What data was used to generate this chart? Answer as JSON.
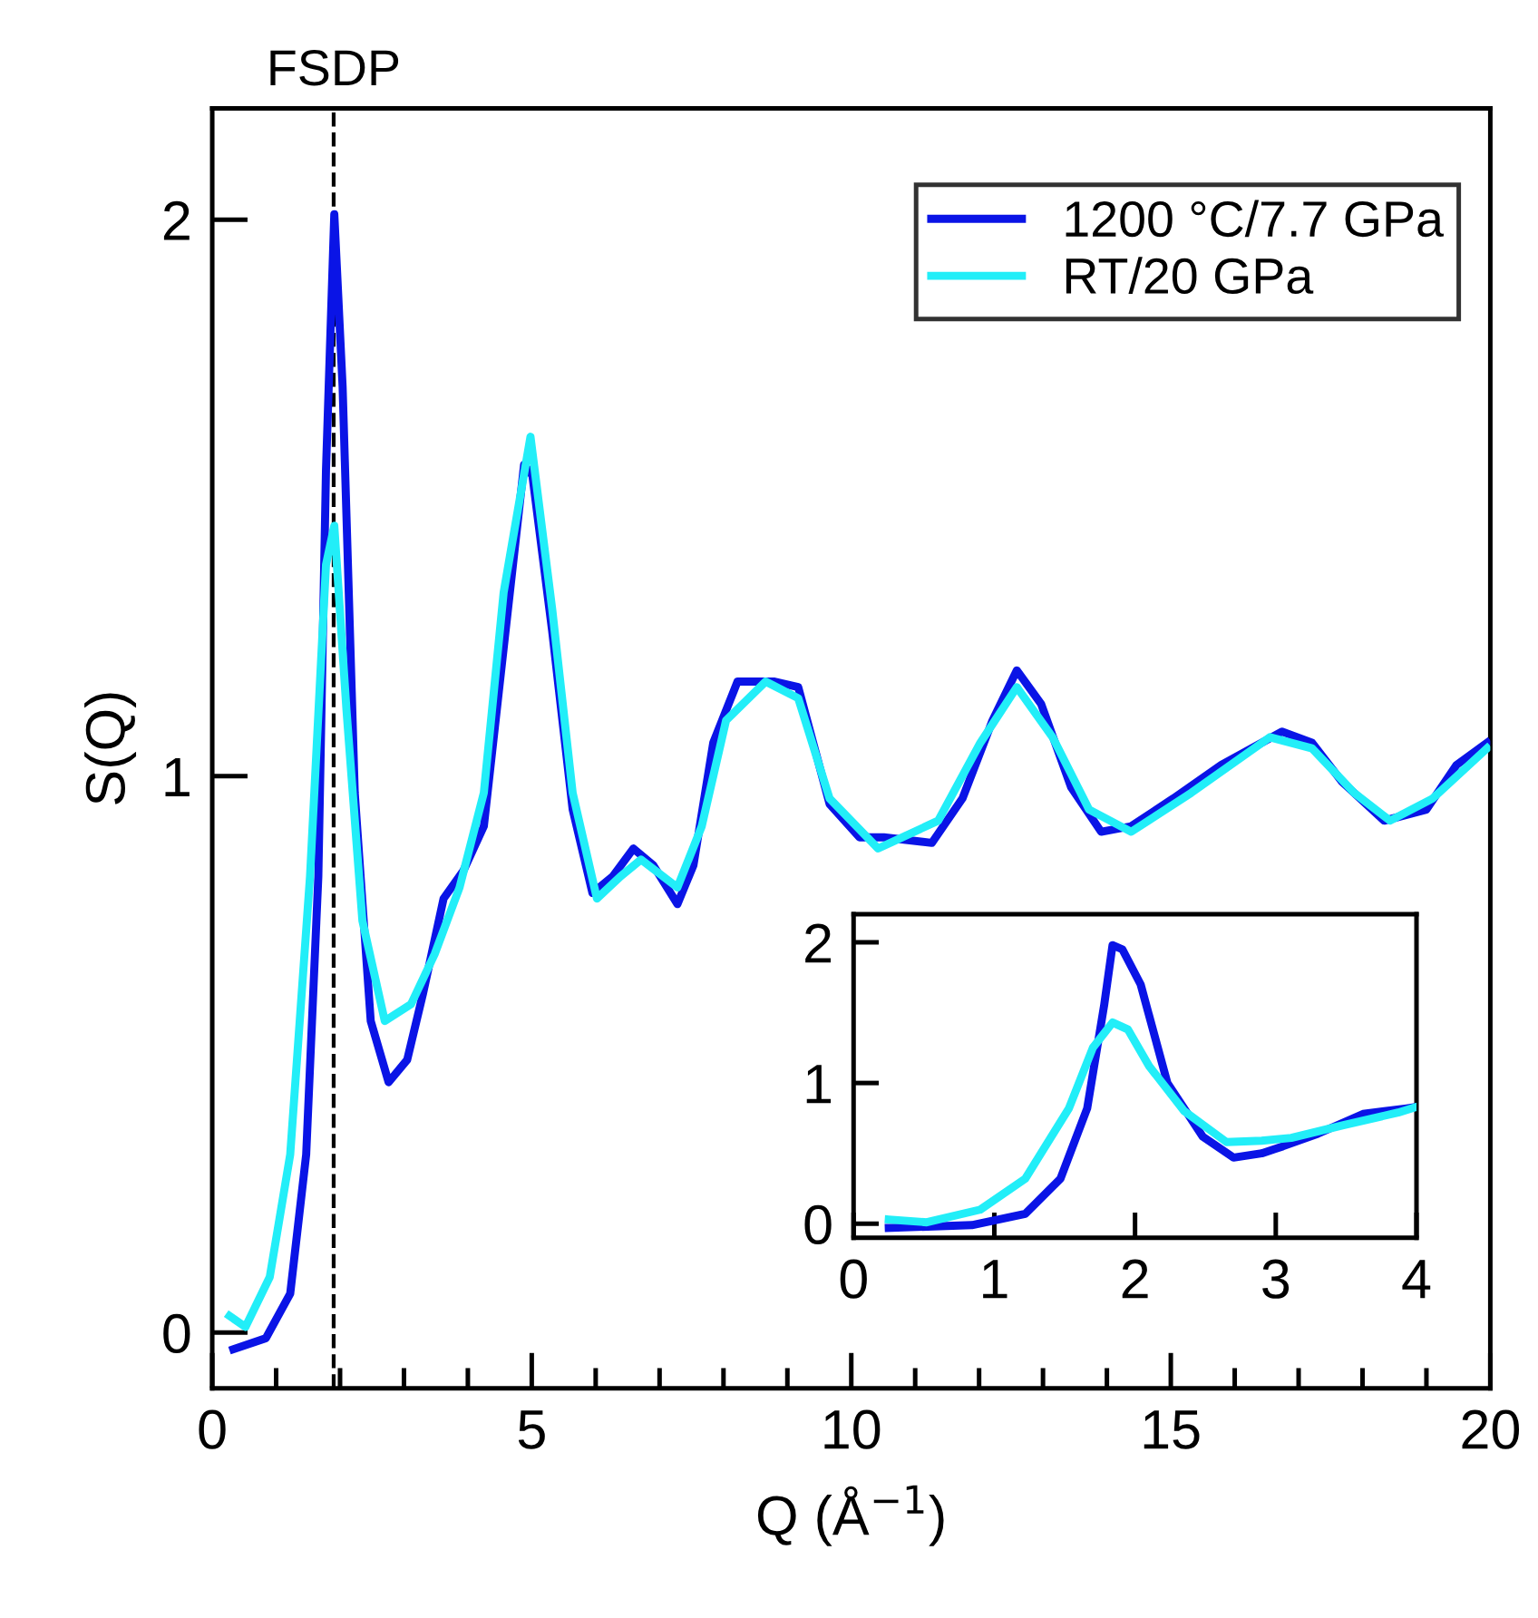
{
  "chart_data": [
    {
      "type": "line",
      "xlabel": "Q (Å$^{−1}$)",
      "ylabel": "S(Q)",
      "xlim": [
        0,
        20
      ],
      "ylim": [
        -0.1,
        2.2
      ],
      "xticks": [
        0,
        {
          "value": 1,
          "label": null
        },
        {
          "value": 2,
          "label": null
        },
        {
          "value": 3,
          "label": null
        },
        {
          "value": 4,
          "label": null
        },
        5,
        {
          "value": 6,
          "label": null
        },
        {
          "value": 7,
          "label": null
        },
        {
          "value": 8,
          "label": null
        },
        {
          "value": 9,
          "label": null
        },
        10,
        {
          "value": 11,
          "label": null
        },
        {
          "value": 12,
          "label": null
        },
        {
          "value": 13,
          "label": null
        },
        {
          "value": 14,
          "label": null
        },
        15,
        {
          "value": 16,
          "label": null
        },
        {
          "value": 17,
          "label": null
        },
        {
          "value": 18,
          "label": null
        },
        {
          "value": 19,
          "label": null
        },
        20
      ],
      "yticks": [
        0,
        1,
        2
      ],
      "grid": false,
      "legend": "top right",
      "marker": "none",
      "line_style": "solid",
      "ref_lines": [
        {
          "axis": "x",
          "value": 1.9,
          "label": "FSDP",
          "color": "#000000",
          "line_style": "dashed"
        }
      ],
      "series": [
        {
          "name": "1200 °C/7.7 GPa",
          "color": "#0a14e6",
          "x": [
            0.33,
            0.84,
            1.22,
            1.47,
            1.66,
            1.78,
            1.91,
            2.04,
            2.23,
            2.48,
            2.76,
            3.05,
            3.3,
            3.62,
            3.93,
            4.25,
            4.56,
            4.88,
            5.01,
            5.32,
            5.64,
            5.95,
            6.27,
            6.59,
            6.9,
            7.28,
            7.53,
            7.84,
            8.22,
            8.8,
            9.17,
            9.66,
            10.13,
            10.51,
            11.26,
            11.74,
            12.21,
            12.59,
            12.97,
            13.44,
            13.91,
            14.38,
            15.04,
            15.79,
            16.74,
            17.21,
            17.68,
            18.34,
            19.0,
            19.47,
            19.95
          ],
          "values": [
            -0.03,
            -0.01,
            0.07,
            0.32,
            0.82,
            1.55,
            2.01,
            1.7,
            0.97,
            0.56,
            0.45,
            0.49,
            0.61,
            0.78,
            0.83,
            0.91,
            1.23,
            1.56,
            1.54,
            1.26,
            0.94,
            0.79,
            0.82,
            0.87,
            0.84,
            0.77,
            0.84,
            1.06,
            1.17,
            1.17,
            1.16,
            0.95,
            0.89,
            0.89,
            0.88,
            0.96,
            1.1,
            1.19,
            1.13,
            0.98,
            0.9,
            0.91,
            0.96,
            1.02,
            1.08,
            1.06,
            0.99,
            0.92,
            0.94,
            1.02,
            1.06
          ]
        },
        {
          "name": "RT/20 GPa",
          "color": "#22eef8",
          "x": [
            0.27,
            0.52,
            0.9,
            1.22,
            1.53,
            1.78,
            1.91,
            2.1,
            2.35,
            2.7,
            3.11,
            3.48,
            3.87,
            4.25,
            4.56,
            4.98,
            5.32,
            5.64,
            6.02,
            6.39,
            6.71,
            7.28,
            7.66,
            8.04,
            8.66,
            9.17,
            9.66,
            10.42,
            11.36,
            12.02,
            12.59,
            13.15,
            13.72,
            14.38,
            15.32,
            16.55,
            17.21,
            17.87,
            18.43,
            19.1,
            19.95
          ],
          "values": [
            0.03,
            0.01,
            0.1,
            0.32,
            0.82,
            1.38,
            1.45,
            1.12,
            0.74,
            0.56,
            0.59,
            0.68,
            0.8,
            0.97,
            1.33,
            1.61,
            1.3,
            0.97,
            0.78,
            0.82,
            0.85,
            0.8,
            0.91,
            1.1,
            1.17,
            1.14,
            0.96,
            0.87,
            0.92,
            1.06,
            1.16,
            1.07,
            0.94,
            0.9,
            0.97,
            1.07,
            1.05,
            0.97,
            0.92,
            0.96,
            1.05
          ]
        }
      ]
    },
    {
      "type": "line",
      "xlim": [
        0,
        4
      ],
      "ylim": [
        -0.1,
        2.2
      ],
      "xticks": [
        0,
        1,
        2,
        3,
        4
      ],
      "yticks": [
        0,
        1,
        2
      ],
      "grid": false,
      "legend": false,
      "marker": "none",
      "line_style": "solid",
      "series": [
        {
          "color": "#0a14e6",
          "x": [
            0.25,
            0.84,
            1.22,
            1.47,
            1.66,
            1.78,
            1.84,
            1.91,
            2.04,
            2.23,
            2.48,
            2.7,
            2.9,
            3.05,
            3.3,
            3.62,
            3.93,
            4.0
          ],
          "values": [
            -0.03,
            -0.01,
            0.07,
            0.32,
            0.82,
            1.55,
            1.98,
            1.95,
            1.7,
            1.0,
            0.62,
            0.47,
            0.5,
            0.55,
            0.64,
            0.78,
            0.82,
            0.83
          ]
        },
        {
          "color": "#22eef8",
          "x": [
            0.25,
            0.52,
            0.9,
            1.22,
            1.53,
            1.7,
            1.84,
            1.95,
            2.1,
            2.35,
            2.65,
            2.9,
            3.11,
            3.48,
            3.87,
            4.0
          ],
          "values": [
            0.03,
            0.01,
            0.1,
            0.32,
            0.82,
            1.25,
            1.43,
            1.38,
            1.12,
            0.8,
            0.58,
            0.59,
            0.61,
            0.7,
            0.79,
            0.83
          ]
        }
      ]
    }
  ]
}
